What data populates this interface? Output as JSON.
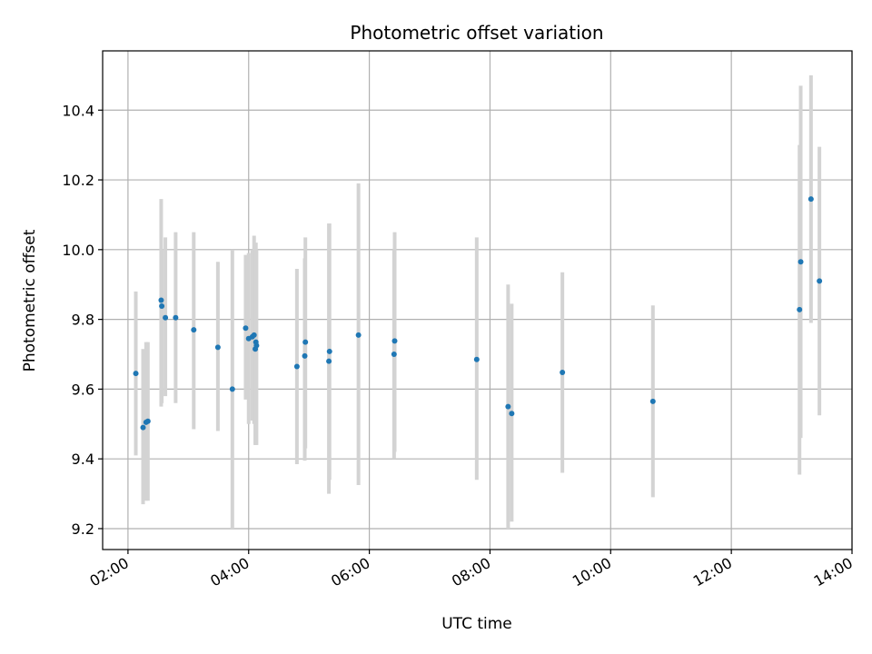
{
  "chart_data": {
    "type": "scatter",
    "title": "Photometric offset variation",
    "xlabel": "UTC time",
    "ylabel": "Photometric offset",
    "x_unit": "hours UTC",
    "xlim": [
      1.58,
      14.0
    ],
    "ylim": [
      9.14,
      10.57
    ],
    "grid": true,
    "legend": "none",
    "x_ticks": [
      {
        "value": 2,
        "label": "02:00"
      },
      {
        "value": 4,
        "label": "04:00"
      },
      {
        "value": 6,
        "label": "06:00"
      },
      {
        "value": 8,
        "label": "08:00"
      },
      {
        "value": 10,
        "label": "10:00"
      },
      {
        "value": 12,
        "label": "12:00"
      },
      {
        "value": 14,
        "label": "14:00"
      }
    ],
    "y_ticks": [
      {
        "value": 9.2,
        "label": "9.2"
      },
      {
        "value": 9.4,
        "label": "9.4"
      },
      {
        "value": 9.6,
        "label": "9.6"
      },
      {
        "value": 9.8,
        "label": "9.8"
      },
      {
        "value": 10.0,
        "label": "10.0"
      },
      {
        "value": 10.2,
        "label": "10.2"
      },
      {
        "value": 10.4,
        "label": "10.4"
      }
    ],
    "colors": {
      "point": "#1f77b4",
      "errorbar": "#d3d3d3",
      "grid": "#b0b0b0"
    },
    "series": [
      {
        "points": [
          {
            "x": 2.13,
            "y": 9.645,
            "lo": 9.41,
            "hi": 9.88
          },
          {
            "x": 2.25,
            "y": 9.49,
            "lo": 9.27,
            "hi": 9.715
          },
          {
            "x": 2.3,
            "y": 9.505,
            "lo": 9.28,
            "hi": 9.735
          },
          {
            "x": 2.33,
            "y": 9.508,
            "lo": 9.28,
            "hi": 9.735
          },
          {
            "x": 2.55,
            "y": 9.855,
            "lo": 9.55,
            "hi": 10.145
          },
          {
            "x": 2.56,
            "y": 9.838,
            "lo": 9.56,
            "hi": 10.0
          },
          {
            "x": 2.62,
            "y": 9.805,
            "lo": 9.58,
            "hi": 10.035
          },
          {
            "x": 2.79,
            "y": 9.805,
            "lo": 9.56,
            "hi": 10.05
          },
          {
            "x": 3.09,
            "y": 9.77,
            "lo": 9.485,
            "hi": 10.05
          },
          {
            "x": 3.49,
            "y": 9.72,
            "lo": 9.48,
            "hi": 9.965
          },
          {
            "x": 3.73,
            "y": 9.6,
            "lo": 9.2,
            "hi": 10.0
          },
          {
            "x": 3.95,
            "y": 9.775,
            "lo": 9.57,
            "hi": 9.985
          },
          {
            "x": 4.0,
            "y": 9.745,
            "lo": 9.5,
            "hi": 9.99
          },
          {
            "x": 4.06,
            "y": 9.75,
            "lo": 9.51,
            "hi": 10.0
          },
          {
            "x": 4.09,
            "y": 9.755,
            "lo": 9.5,
            "hi": 10.04
          },
          {
            "x": 4.11,
            "y": 9.715,
            "lo": 9.44,
            "hi": 10.0
          },
          {
            "x": 4.12,
            "y": 9.735,
            "lo": 9.44,
            "hi": 10.02
          },
          {
            "x": 4.13,
            "y": 9.725,
            "lo": 9.44,
            "hi": 10.0
          },
          {
            "x": 4.8,
            "y": 9.665,
            "lo": 9.385,
            "hi": 9.945
          },
          {
            "x": 4.93,
            "y": 9.695,
            "lo": 9.395,
            "hi": 9.975
          },
          {
            "x": 4.94,
            "y": 9.735,
            "lo": 9.43,
            "hi": 10.035
          },
          {
            "x": 5.33,
            "y": 9.68,
            "lo": 9.3,
            "hi": 10.075
          },
          {
            "x": 5.34,
            "y": 9.708,
            "lo": 9.34,
            "hi": 10.075
          },
          {
            "x": 5.82,
            "y": 9.755,
            "lo": 9.325,
            "hi": 10.19
          },
          {
            "x": 6.41,
            "y": 9.7,
            "lo": 9.4,
            "hi": 10.0
          },
          {
            "x": 6.42,
            "y": 9.738,
            "lo": 9.42,
            "hi": 10.05
          },
          {
            "x": 7.78,
            "y": 9.685,
            "lo": 9.34,
            "hi": 10.035
          },
          {
            "x": 8.3,
            "y": 9.55,
            "lo": 9.2,
            "hi": 9.9
          },
          {
            "x": 8.36,
            "y": 9.53,
            "lo": 9.22,
            "hi": 9.845
          },
          {
            "x": 9.2,
            "y": 9.648,
            "lo": 9.36,
            "hi": 9.935
          },
          {
            "x": 10.7,
            "y": 9.565,
            "lo": 9.29,
            "hi": 9.84
          },
          {
            "x": 13.13,
            "y": 9.828,
            "lo": 9.355,
            "hi": 10.3
          },
          {
            "x": 13.15,
            "y": 9.965,
            "lo": 9.46,
            "hi": 10.47
          },
          {
            "x": 13.32,
            "y": 10.145,
            "lo": 9.79,
            "hi": 10.5
          },
          {
            "x": 13.46,
            "y": 9.91,
            "lo": 9.525,
            "hi": 10.295
          }
        ]
      }
    ]
  }
}
